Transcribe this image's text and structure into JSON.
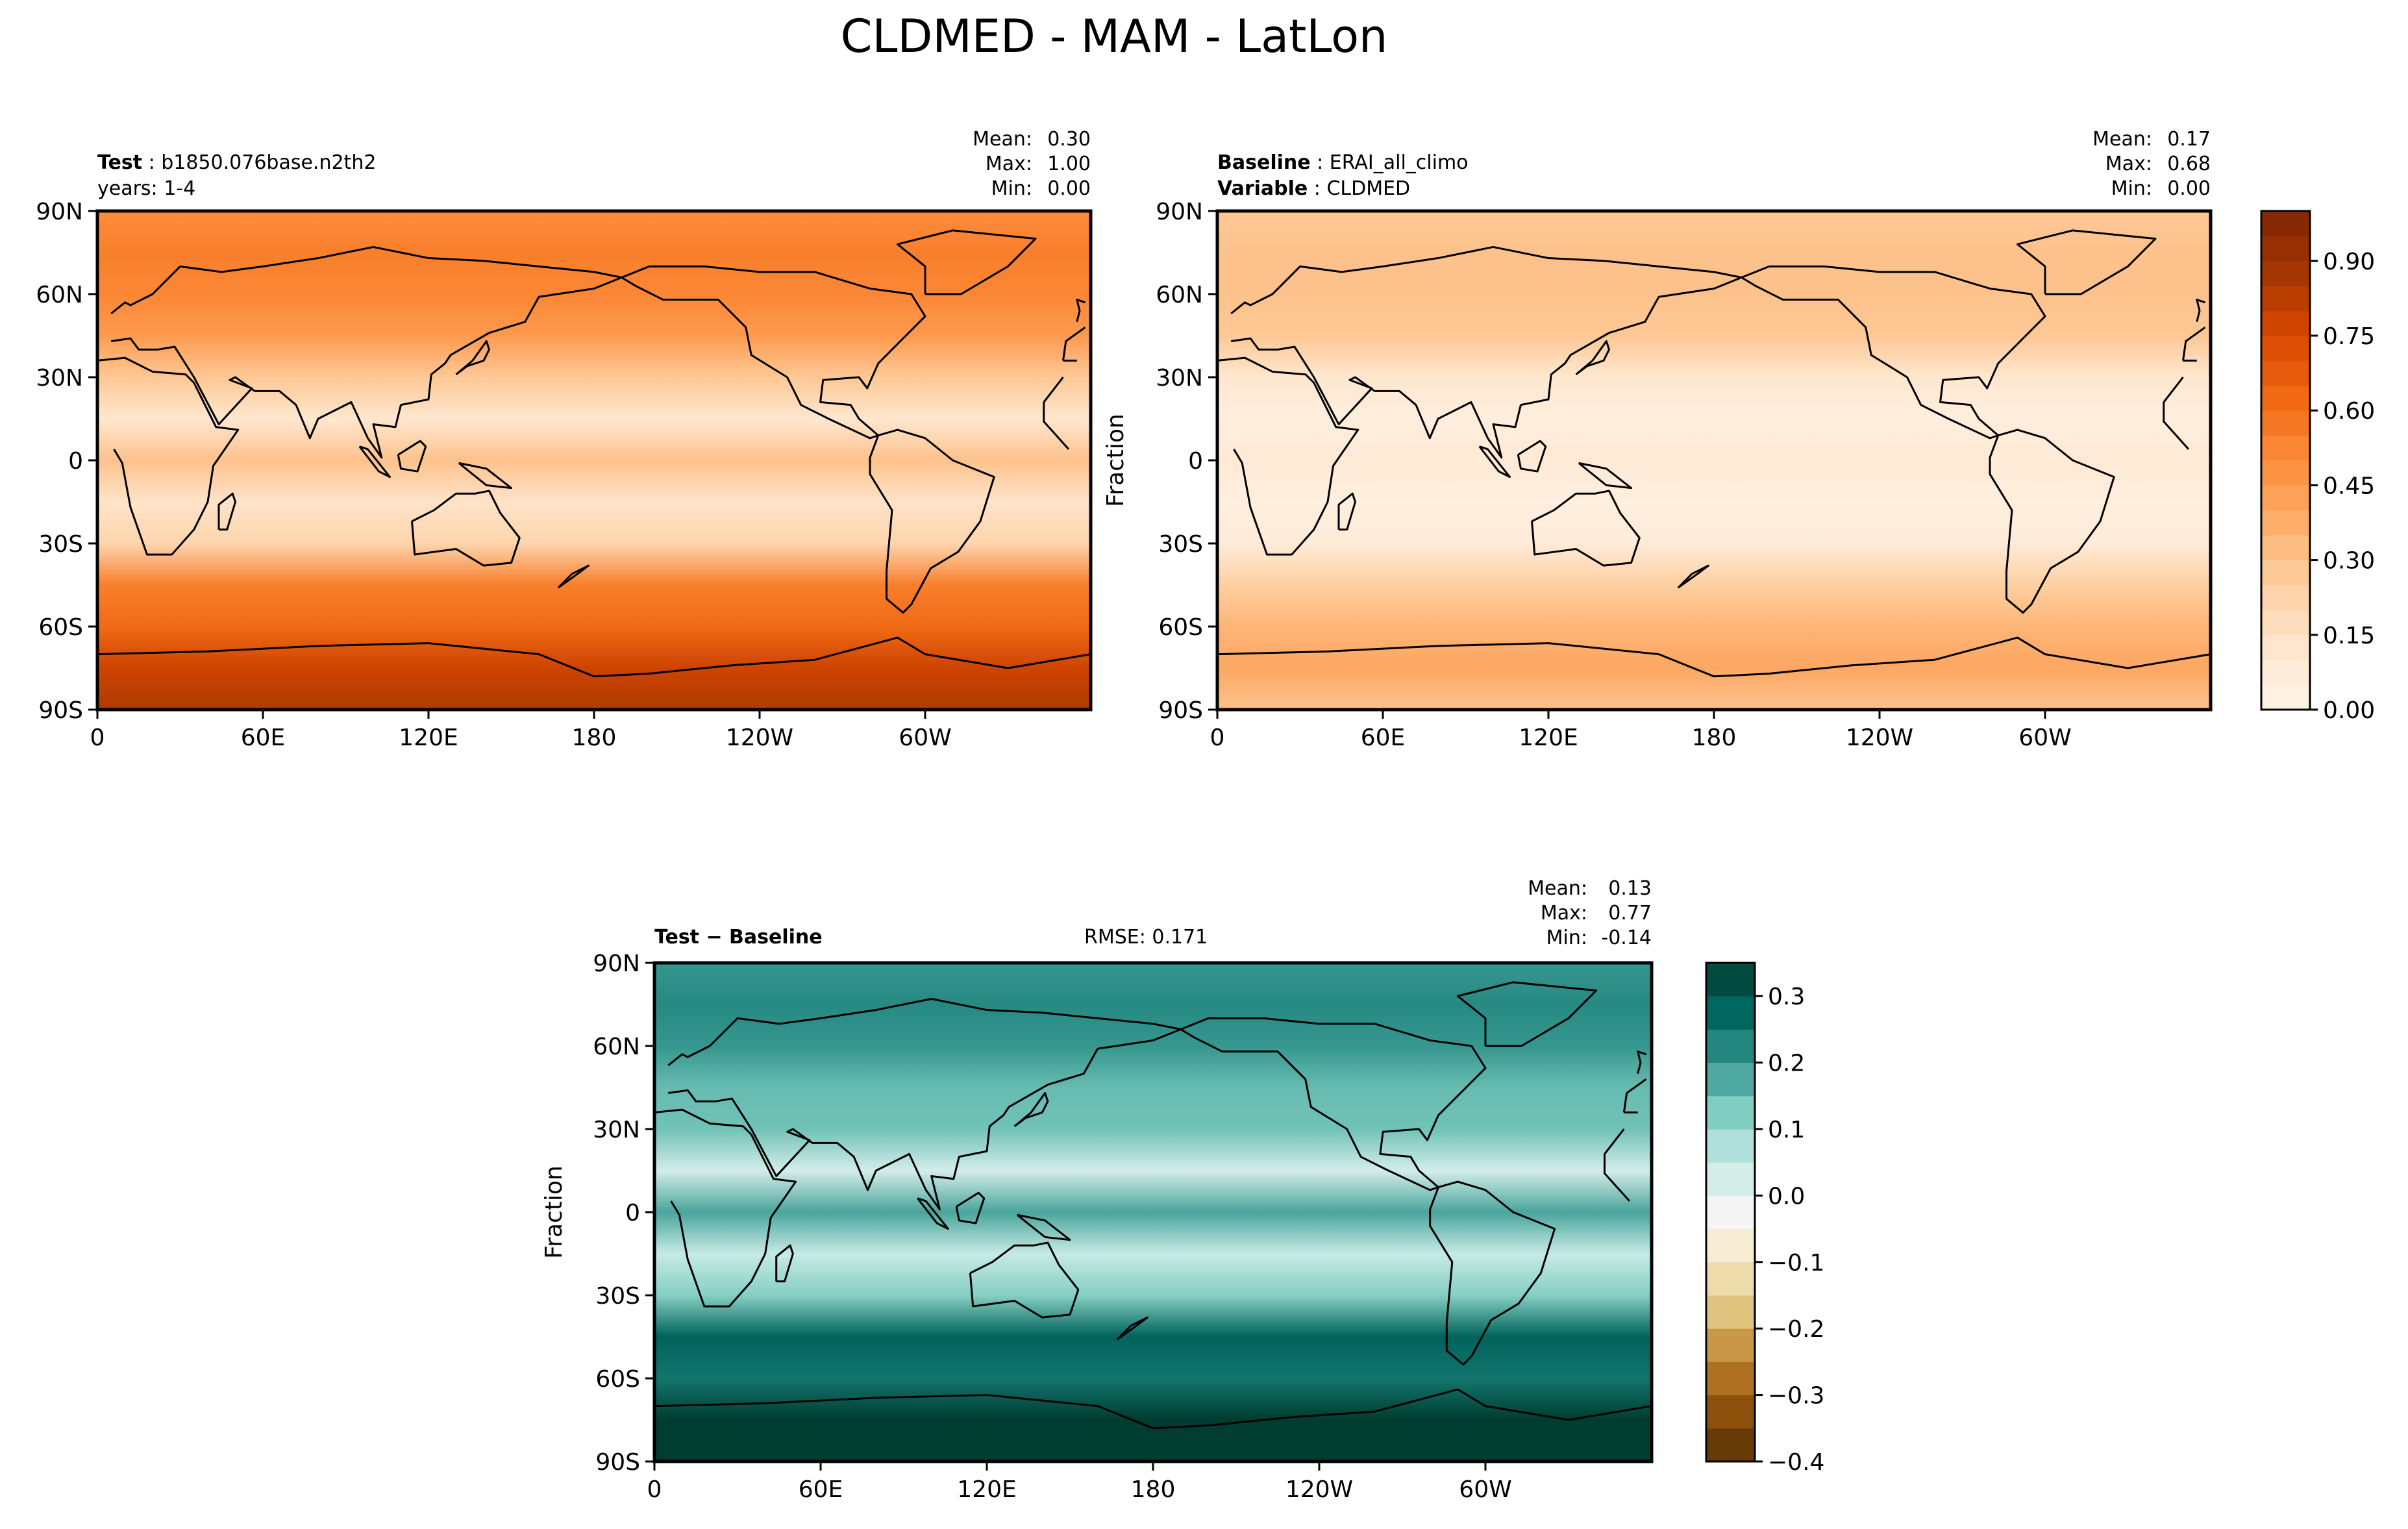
{
  "figure": {
    "title": "CLDMED - MAM - LatLon"
  },
  "colors": {
    "seq_cmap": [
      "#fff5eb",
      "#fee6ce",
      "#fdd0a2",
      "#fdae6b",
      "#fd8d3c",
      "#f16913",
      "#d94801",
      "#a63603",
      "#7f2704"
    ],
    "diff_cmap": [
      "#543005",
      "#8c510a",
      "#bf812d",
      "#dfc27d",
      "#f6e8c3",
      "#f5f5f5",
      "#c7eae5",
      "#80cdc1",
      "#35978f",
      "#01665e",
      "#003c30"
    ],
    "coast": "#000000"
  },
  "panels": {
    "test": {
      "label_bold": "Test",
      "label_value": "b1850.076base.n2th2",
      "subtitle": "years: 1-4",
      "stats": {
        "mean_label": "Mean:",
        "mean": "0.30",
        "max_label": "Max:",
        "max": "1.00",
        "min_label": "Min:",
        "min": "0.00"
      }
    },
    "baseline": {
      "label_bold": "Baseline",
      "label_value": "ERAI_all_climo",
      "label2_bold": "Variable",
      "label2_value": "CLDMED",
      "ylabel": "Fraction",
      "stats": {
        "mean_label": "Mean:",
        "mean": "0.17",
        "max_label": "Max:",
        "max": "0.68",
        "min_label": "Min:",
        "min": "0.00"
      }
    },
    "diff": {
      "label": "Test − Baseline",
      "rmse": "RMSE: 0.171",
      "ylabel": "Fraction",
      "stats": {
        "mean_label": "Mean:",
        "mean": "0.13",
        "max_label": "Max:",
        "max": "0.77",
        "min_label": "Min:",
        "min": "-0.14"
      }
    }
  },
  "chart_data": [
    {
      "type": "heatmap",
      "panel": "test",
      "x_ticks": [
        "0",
        "60E",
        "120E",
        "180",
        "120W",
        "60W"
      ],
      "y_ticks": [
        "90N",
        "60N",
        "30N",
        "0",
        "30S",
        "60S",
        "90S"
      ],
      "xlim": [
        0,
        360
      ],
      "ylim": [
        -90,
        90
      ],
      "zonal_profile": {
        "lat": [
          -90,
          -75,
          -60,
          -45,
          -30,
          -15,
          0,
          15,
          30,
          45,
          60,
          75,
          90
        ],
        "value": [
          0.85,
          0.78,
          0.62,
          0.55,
          0.22,
          0.14,
          0.3,
          0.12,
          0.28,
          0.45,
          0.52,
          0.55,
          0.5
        ]
      }
    },
    {
      "type": "heatmap",
      "panel": "baseline",
      "x_ticks": [
        "0",
        "60E",
        "120E",
        "180",
        "120W",
        "60W"
      ],
      "y_ticks": [
        "90N",
        "60N",
        "30N",
        "0",
        "30S",
        "60S",
        "90S"
      ],
      "xlim": [
        0,
        360
      ],
      "ylim": [
        -90,
        90
      ],
      "zonal_profile": {
        "lat": [
          -90,
          -75,
          -60,
          -45,
          -30,
          -15,
          0,
          15,
          30,
          45,
          60,
          75,
          90
        ],
        "value": [
          0.3,
          0.4,
          0.35,
          0.25,
          0.08,
          0.05,
          0.1,
          0.06,
          0.12,
          0.28,
          0.3,
          0.3,
          0.28
        ]
      },
      "colorbar": {
        "ticks": [
          "0.00",
          "0.15",
          "0.30",
          "0.45",
          "0.60",
          "0.75",
          "0.90"
        ],
        "range": [
          0,
          1
        ]
      }
    },
    {
      "type": "heatmap",
      "panel": "diff",
      "x_ticks": [
        "0",
        "60E",
        "120E",
        "180",
        "120W",
        "60W"
      ],
      "y_ticks": [
        "90N",
        "60N",
        "30N",
        "0",
        "30S",
        "60S",
        "90S"
      ],
      "xlim": [
        0,
        360
      ],
      "ylim": [
        -90,
        90
      ],
      "zonal_profile": {
        "lat": [
          -90,
          -75,
          -60,
          -45,
          -30,
          -15,
          0,
          15,
          30,
          45,
          60,
          75,
          90
        ],
        "value": [
          0.4,
          0.35,
          0.25,
          0.28,
          0.12,
          0.05,
          0.18,
          0.03,
          0.14,
          0.15,
          0.2,
          0.22,
          0.2
        ]
      },
      "colorbar": {
        "ticks": [
          "0.3",
          "0.2",
          "0.1",
          "0.0",
          "−0.1",
          "−0.2",
          "−0.3",
          "−0.4"
        ],
        "range": [
          -0.4,
          0.35
        ]
      }
    }
  ]
}
